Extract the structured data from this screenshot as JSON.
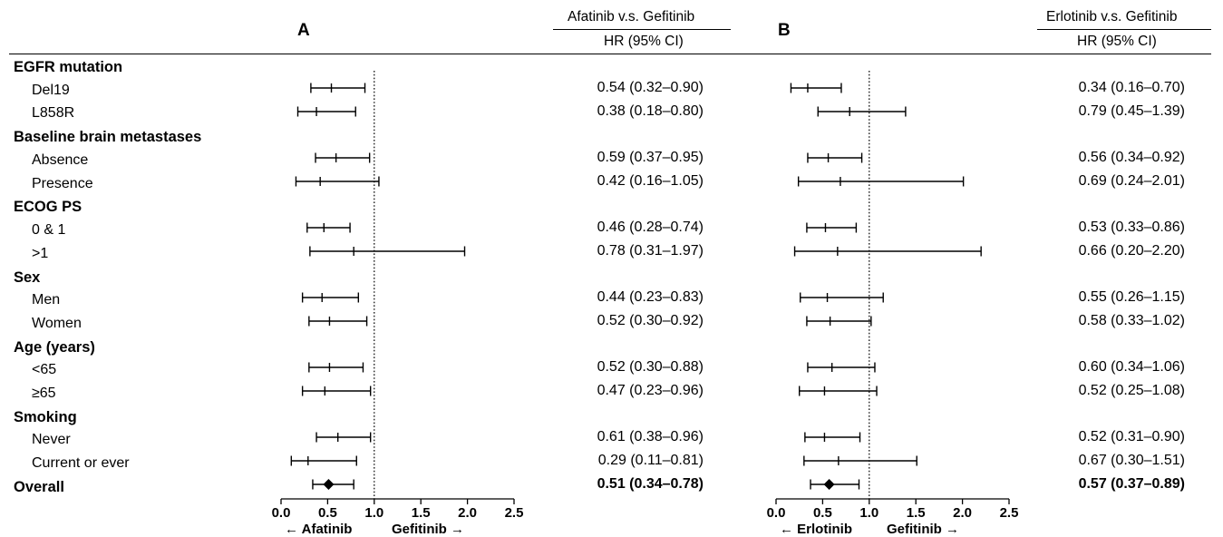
{
  "panels": {
    "A": {
      "letter": "A",
      "comparison": "Afatinib v.s. Gefitinib",
      "hr_header": "HR (95% CI)",
      "left_label": "Afatinib",
      "right_label": "Gefitinib"
    },
    "B": {
      "letter": "B",
      "comparison": "Erlotinib v.s. Gefitinib",
      "hr_header": "HR (95% CI)",
      "left_label": "Erlotinib",
      "right_label": "Gefitinib"
    }
  },
  "arrows": {
    "left": "←",
    "right": "→"
  },
  "categories": [
    "EGFR mutation",
    "Baseline brain metastases",
    "ECOG PS",
    "Sex",
    "Age (years)",
    "Smoking"
  ],
  "subgroups": [
    "Del19",
    "L858R",
    "Absence",
    "Presence",
    "0 & 1",
    ">1",
    "Men",
    "Women",
    "<65",
    "≥65",
    "Never",
    "Current or ever"
  ],
  "overall_label": "Overall",
  "chart_data": [
    {
      "type": "forest",
      "panel": "A",
      "xlim": [
        0,
        2.5
      ],
      "reference_line": 1.0,
      "xticks": [
        "0.0",
        "0.5",
        "1.0",
        "1.5",
        "2.0",
        "2.5"
      ],
      "rows": [
        {
          "label": "Del19",
          "hr": 0.54,
          "lo": 0.32,
          "hi": 0.9,
          "text": "0.54 (0.32–0.90)"
        },
        {
          "label": "L858R",
          "hr": 0.38,
          "lo": 0.18,
          "hi": 0.8,
          "text": "0.38 (0.18–0.80)"
        },
        {
          "label": "Absence",
          "hr": 0.59,
          "lo": 0.37,
          "hi": 0.95,
          "text": "0.59 (0.37–0.95)"
        },
        {
          "label": "Presence",
          "hr": 0.42,
          "lo": 0.16,
          "hi": 1.05,
          "text": "0.42 (0.16–1.05)"
        },
        {
          "label": "0 & 1",
          "hr": 0.46,
          "lo": 0.28,
          "hi": 0.74,
          "text": "0.46 (0.28–0.74)"
        },
        {
          "label": ">1",
          "hr": 0.78,
          "lo": 0.31,
          "hi": 1.97,
          "text": "0.78 (0.31–1.97)"
        },
        {
          "label": "Men",
          "hr": 0.44,
          "lo": 0.23,
          "hi": 0.83,
          "text": "0.44 (0.23–0.83)"
        },
        {
          "label": "Women",
          "hr": 0.52,
          "lo": 0.3,
          "hi": 0.92,
          "text": "0.52 (0.30–0.92)"
        },
        {
          "label": "<65",
          "hr": 0.52,
          "lo": 0.3,
          "hi": 0.88,
          "text": "0.52 (0.30–0.88)"
        },
        {
          "label": "≥65",
          "hr": 0.47,
          "lo": 0.23,
          "hi": 0.96,
          "text": "0.47 (0.23–0.96)"
        },
        {
          "label": "Never",
          "hr": 0.61,
          "lo": 0.38,
          "hi": 0.96,
          "text": "0.61 (0.38–0.96)"
        },
        {
          "label": "Current or ever",
          "hr": 0.29,
          "lo": 0.11,
          "hi": 0.81,
          "text": "0.29 (0.11–0.81)"
        }
      ],
      "overall": {
        "label": "Overall",
        "hr": 0.51,
        "lo": 0.34,
        "hi": 0.78,
        "text": "0.51 (0.34–0.78)"
      }
    },
    {
      "type": "forest",
      "panel": "B",
      "xlim": [
        0,
        2.5
      ],
      "reference_line": 1.0,
      "xticks": [
        "0.0",
        "0.5",
        "1.0",
        "1.5",
        "2.0",
        "2.5"
      ],
      "rows": [
        {
          "label": "Del19",
          "hr": 0.34,
          "lo": 0.16,
          "hi": 0.7,
          "text": "0.34 (0.16–0.70)"
        },
        {
          "label": "L858R",
          "hr": 0.79,
          "lo": 0.45,
          "hi": 1.39,
          "text": "0.79 (0.45–1.39)"
        },
        {
          "label": "Absence",
          "hr": 0.56,
          "lo": 0.34,
          "hi": 0.92,
          "text": "0.56 (0.34–0.92)"
        },
        {
          "label": "Presence",
          "hr": 0.69,
          "lo": 0.24,
          "hi": 2.01,
          "text": "0.69 (0.24–2.01)"
        },
        {
          "label": "0 & 1",
          "hr": 0.53,
          "lo": 0.33,
          "hi": 0.86,
          "text": "0.53 (0.33–0.86)"
        },
        {
          "label": ">1",
          "hr": 0.66,
          "lo": 0.2,
          "hi": 2.2,
          "text": "0.66 (0.20–2.20)"
        },
        {
          "label": "Men",
          "hr": 0.55,
          "lo": 0.26,
          "hi": 1.15,
          "text": "0.55 (0.26–1.15)"
        },
        {
          "label": "Women",
          "hr": 0.58,
          "lo": 0.33,
          "hi": 1.02,
          "text": "0.58 (0.33–1.02)"
        },
        {
          "label": "<65",
          "hr": 0.6,
          "lo": 0.34,
          "hi": 1.06,
          "text": "0.60 (0.34–1.06)"
        },
        {
          "label": "≥65",
          "hr": 0.52,
          "lo": 0.25,
          "hi": 1.08,
          "text": "0.52 (0.25–1.08)"
        },
        {
          "label": "Never",
          "hr": 0.52,
          "lo": 0.31,
          "hi": 0.9,
          "text": "0.52 (0.31–0.90)"
        },
        {
          "label": "Current or ever",
          "hr": 0.67,
          "lo": 0.3,
          "hi": 1.51,
          "text": "0.67 (0.30–1.51)"
        }
      ],
      "overall": {
        "label": "Overall",
        "hr": 0.57,
        "lo": 0.37,
        "hi": 0.89,
        "text": "0.57 (0.37–0.89)"
      }
    }
  ]
}
